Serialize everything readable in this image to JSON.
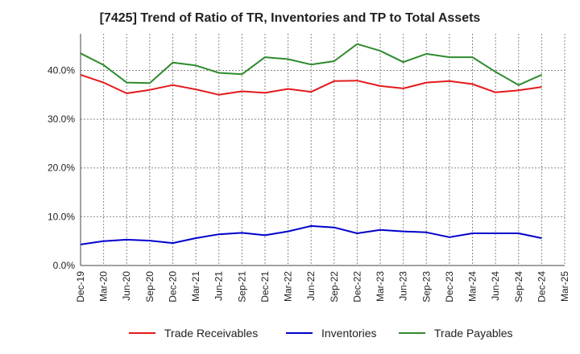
{
  "chart_data": {
    "type": "line",
    "title": "[7425]  Trend of Ratio of TR, Inventories and TP to Total Assets",
    "x": [
      "Dec-19",
      "Mar-20",
      "Jun-20",
      "Sep-20",
      "Dec-20",
      "Mar-21",
      "Jun-21",
      "Sep-21",
      "Dec-21",
      "Mar-22",
      "Jun-22",
      "Sep-22",
      "Dec-22",
      "Mar-23",
      "Jun-23",
      "Sep-23",
      "Dec-23",
      "Mar-24",
      "Jun-24",
      "Sep-24",
      "Dec-24"
    ],
    "x_tick_labels": [
      "Dec-19",
      "Mar-20",
      "Jun-20",
      "Sep-20",
      "Dec-20",
      "Mar-21",
      "Jun-21",
      "Sep-21",
      "Dec-21",
      "Mar-22",
      "Jun-22",
      "Sep-22",
      "Dec-22",
      "Mar-23",
      "Jun-23",
      "Sep-23",
      "Dec-23",
      "Mar-24",
      "Jun-24",
      "Sep-24",
      "Dec-24",
      "Mar-25"
    ],
    "y_ticks": [
      0,
      10,
      20,
      30,
      40
    ],
    "y_tick_labels": [
      "0.0%",
      "10.0%",
      "20.0%",
      "30.0%",
      "40.0%"
    ],
    "ylim": [
      0,
      47.5
    ],
    "grid": true,
    "legend_position": "bottom",
    "series": [
      {
        "name": "Trade Receivables",
        "color": "#e31a1c",
        "values": [
          39.1,
          37.5,
          35.3,
          36.0,
          37.0,
          36.1,
          35.0,
          35.7,
          35.4,
          36.2,
          35.6,
          37.8,
          37.9,
          36.8,
          36.3,
          37.5,
          37.8,
          37.2,
          35.5,
          35.9,
          36.6
        ]
      },
      {
        "name": "Inventories",
        "color": "#0000cc",
        "values": [
          4.3,
          5.0,
          5.3,
          5.1,
          4.6,
          5.6,
          6.4,
          6.7,
          6.2,
          7.0,
          8.1,
          7.8,
          6.6,
          7.3,
          7.0,
          6.8,
          5.8,
          6.6,
          6.6,
          6.6,
          5.6
        ]
      },
      {
        "name": "Trade Payables",
        "color": "#2e8b2e",
        "values": [
          43.5,
          41.1,
          37.5,
          37.4,
          41.6,
          41.0,
          39.5,
          39.2,
          42.7,
          42.3,
          41.2,
          41.9,
          45.4,
          44.0,
          41.7,
          43.4,
          42.7,
          42.7,
          39.7,
          37.0,
          39.1
        ]
      }
    ]
  }
}
